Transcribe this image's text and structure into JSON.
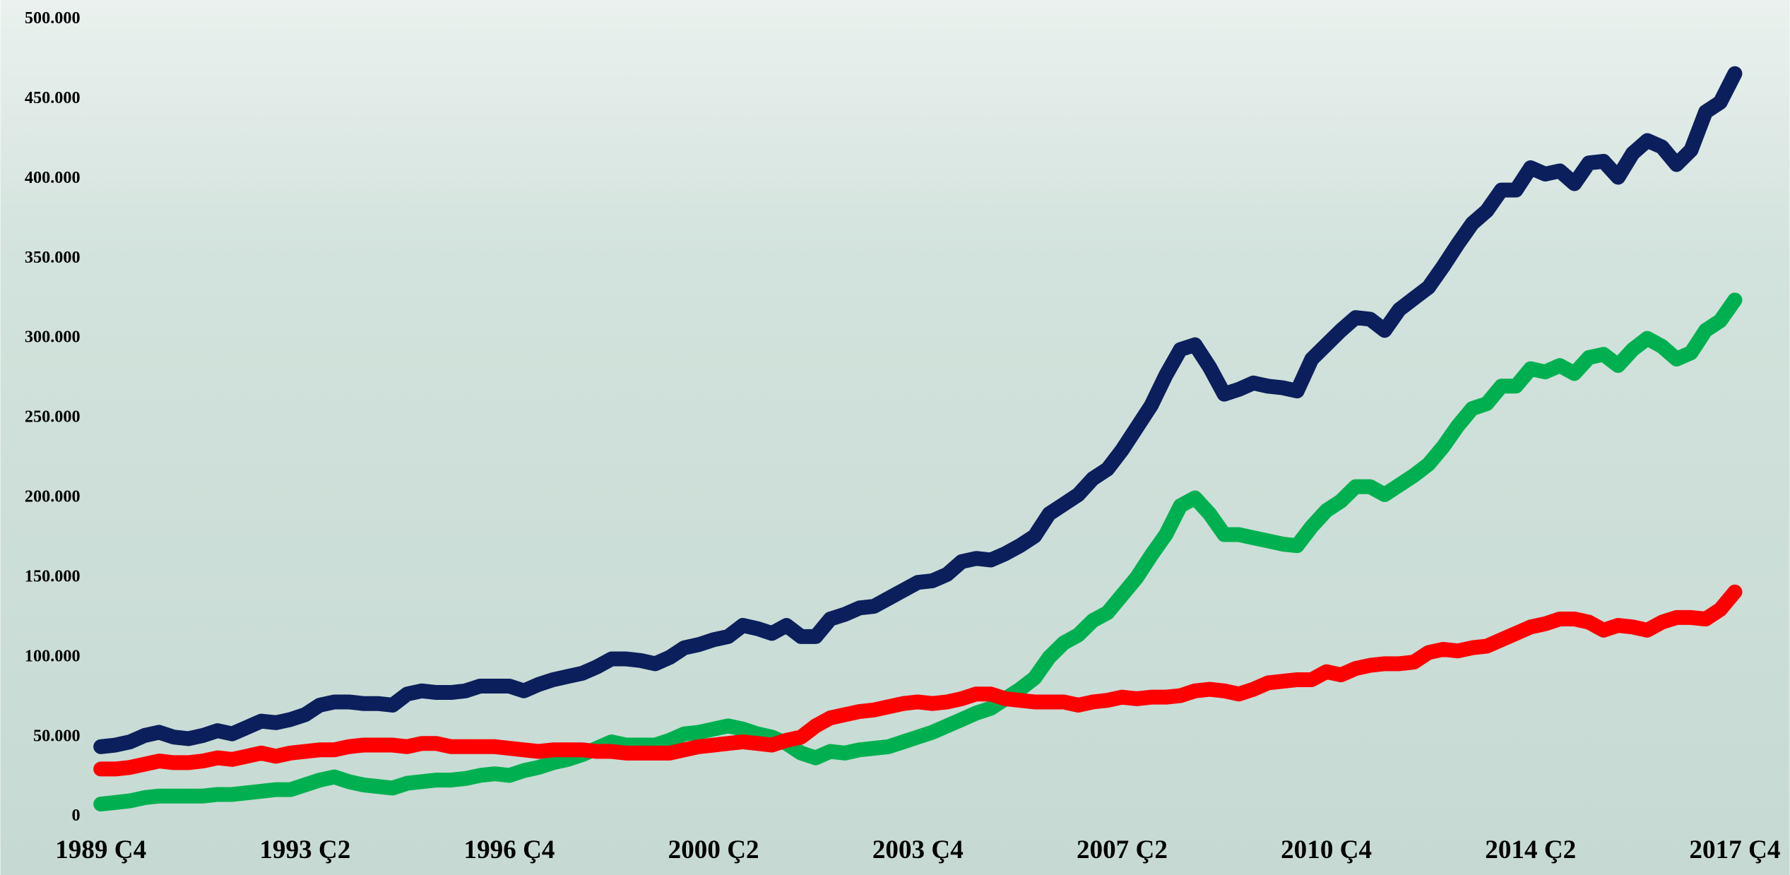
{
  "chart_data": {
    "type": "line",
    "categories": [
      "1989 Ç4",
      null,
      null,
      null,
      null,
      null,
      null,
      null,
      null,
      null,
      null,
      null,
      null,
      null,
      "1993 Ç2",
      null,
      null,
      null,
      null,
      null,
      null,
      null,
      null,
      null,
      null,
      null,
      null,
      null,
      "1996 Ç4",
      null,
      null,
      null,
      null,
      null,
      null,
      null,
      null,
      null,
      null,
      null,
      null,
      null,
      "2000 Ç2",
      null,
      null,
      null,
      null,
      null,
      null,
      null,
      null,
      null,
      null,
      null,
      null,
      null,
      "2003 Ç4",
      null,
      null,
      null,
      null,
      null,
      null,
      null,
      null,
      null,
      null,
      null,
      null,
      null,
      "2007 Ç2",
      null,
      null,
      null,
      null,
      null,
      null,
      null,
      null,
      null,
      null,
      null,
      null,
      null,
      "2010 Ç4",
      null,
      null,
      null,
      null,
      null,
      null,
      null,
      null,
      null,
      null,
      null,
      null,
      null,
      "2014 Ç2",
      null,
      null,
      null,
      null,
      null,
      null,
      null,
      null,
      null,
      null,
      null,
      null,
      null,
      "2017 Ç4"
    ],
    "series": [
      {
        "color": "#0b1f5c",
        "values": [
          44000,
          45000,
          47000,
          51000,
          53000,
          50000,
          49000,
          51000,
          54000,
          52000,
          56000,
          60000,
          59000,
          61000,
          64000,
          70000,
          72000,
          72000,
          71000,
          71000,
          70000,
          77000,
          79000,
          78000,
          78000,
          79000,
          82000,
          82000,
          82000,
          79000,
          83000,
          86000,
          88000,
          90000,
          94000,
          99000,
          99000,
          98000,
          96000,
          100000,
          106000,
          108000,
          111000,
          113000,
          120000,
          118000,
          115000,
          120000,
          113000,
          113000,
          124000,
          127000,
          131000,
          132000,
          137000,
          142000,
          147000,
          148000,
          152000,
          160000,
          162000,
          161000,
          165000,
          170000,
          176000,
          190000,
          196000,
          202000,
          212000,
          218000,
          230000,
          244000,
          258000,
          277000,
          293000,
          296000,
          282000,
          265000,
          268000,
          272000,
          270000,
          269000,
          267000,
          287000,
          296000,
          305000,
          313000,
          312000,
          305000,
          318000,
          325000,
          332000,
          345000,
          359000,
          372000,
          380000,
          393000,
          393000,
          407000,
          403000,
          405000,
          397000,
          410000,
          411000,
          401000,
          416000,
          424000,
          420000,
          409000,
          418000,
          442000,
          448000,
          466000
        ]
      },
      {
        "color": "#00b050",
        "values": [
          8000,
          9000,
          10000,
          12000,
          13000,
          13000,
          13000,
          13000,
          14000,
          14000,
          15000,
          16000,
          17000,
          17000,
          20000,
          23000,
          25000,
          22000,
          20000,
          19000,
          18000,
          21000,
          22000,
          23000,
          23000,
          24000,
          26000,
          27000,
          26000,
          29000,
          31000,
          34000,
          36000,
          39000,
          43000,
          47000,
          45000,
          45000,
          45000,
          48000,
          52000,
          53000,
          55000,
          57000,
          55000,
          52000,
          50000,
          46000,
          40000,
          37000,
          41000,
          40000,
          42000,
          43000,
          44000,
          47000,
          50000,
          53000,
          57000,
          61000,
          65000,
          68000,
          74000,
          80000,
          87000,
          100000,
          109000,
          114000,
          123000,
          128000,
          139000,
          150000,
          164000,
          177000,
          195000,
          200000,
          190000,
          177000,
          177000,
          175000,
          173000,
          171000,
          170000,
          182000,
          192000,
          198000,
          207000,
          207000,
          202000,
          208000,
          214000,
          221000,
          232000,
          245000,
          256000,
          259000,
          270000,
          270000,
          281000,
          279000,
          283000,
          278000,
          288000,
          290000,
          283000,
          293000,
          300000,
          295000,
          287000,
          291000,
          305000,
          311000,
          324000
        ]
      },
      {
        "color": "#ff0000",
        "values": [
          30000,
          30000,
          31000,
          33000,
          35000,
          34000,
          34000,
          35000,
          37000,
          36000,
          38000,
          40000,
          38000,
          40000,
          41000,
          42000,
          42000,
          44000,
          45000,
          45000,
          45000,
          44000,
          46000,
          46000,
          44000,
          44000,
          44000,
          44000,
          43000,
          42000,
          41000,
          42000,
          42000,
          42000,
          41000,
          41000,
          40000,
          40000,
          40000,
          40000,
          42000,
          44000,
          45000,
          46000,
          47000,
          46000,
          45000,
          48000,
          50000,
          57000,
          62000,
          64000,
          66000,
          67000,
          69000,
          71000,
          72000,
          71000,
          72000,
          74000,
          77000,
          77000,
          74000,
          73000,
          72000,
          72000,
          72000,
          70000,
          72000,
          73000,
          75000,
          74000,
          75000,
          75000,
          76000,
          79000,
          80000,
          79000,
          77000,
          80000,
          84000,
          85000,
          86000,
          86000,
          91000,
          89000,
          93000,
          95000,
          96000,
          96000,
          97000,
          103000,
          105000,
          104000,
          106000,
          107000,
          111000,
          115000,
          119000,
          121000,
          124000,
          124000,
          122000,
          117000,
          120000,
          119000,
          117000,
          122000,
          125000,
          125000,
          124000,
          130000,
          141000
        ]
      }
    ],
    "ylim": [
      0,
      500000
    ],
    "yticks": [
      0,
      {
        "value": 50000,
        "label": "50.000"
      },
      {
        "value": 100000,
        "label": "100.000"
      },
      {
        "value": 150000,
        "label": "150.000"
      },
      {
        "value": 200000,
        "label": "200.000"
      },
      {
        "value": 250000,
        "label": "250.000"
      },
      {
        "value": 300000,
        "label": "300.000"
      },
      {
        "value": 350000,
        "label": "350.000"
      },
      {
        "value": 400000,
        "label": "400.000"
      },
      {
        "value": 450000,
        "label": "450.000"
      },
      {
        "value": 500000,
        "label": "500.000"
      }
    ]
  }
}
